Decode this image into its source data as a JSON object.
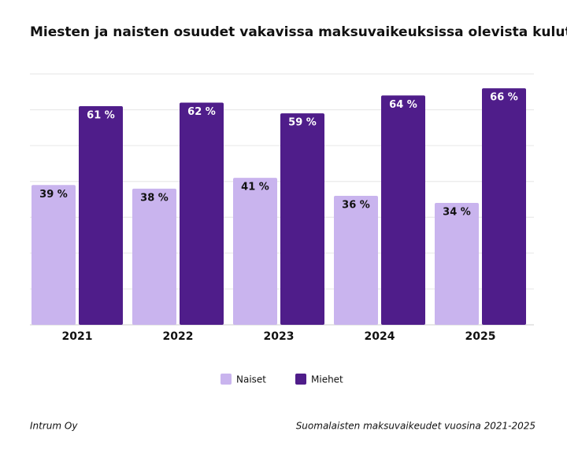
{
  "chart_data": {
    "type": "bar",
    "title": "Miesten ja naisten osuudet vakavissa maksuvaikeuksissa olevista kuluttajista",
    "categories": [
      "2021",
      "2022",
      "2023",
      "2024",
      "2025"
    ],
    "series": [
      {
        "name": "Naiset",
        "color": "#c9b4ee",
        "values": [
          39,
          38,
          41,
          36,
          34
        ],
        "value_labels": [
          "39 %",
          "38 %",
          "41 %",
          "36 %",
          "34 %"
        ]
      },
      {
        "name": "Miehet",
        "color": "#4f1d8a",
        "values": [
          61,
          62,
          59,
          64,
          66
        ],
        "value_labels": [
          "61 %",
          "62 %",
          "59 %",
          "64 %",
          "66 %"
        ]
      }
    ],
    "ylim": [
      0,
      70
    ],
    "yticks": [
      0,
      10,
      20,
      30,
      40,
      50,
      60,
      70
    ],
    "grid": true,
    "legend": "bottom",
    "source": "Intrum Oy",
    "note": "Suomalaisten maksuvaikeudet vuosina 2021-2025"
  }
}
